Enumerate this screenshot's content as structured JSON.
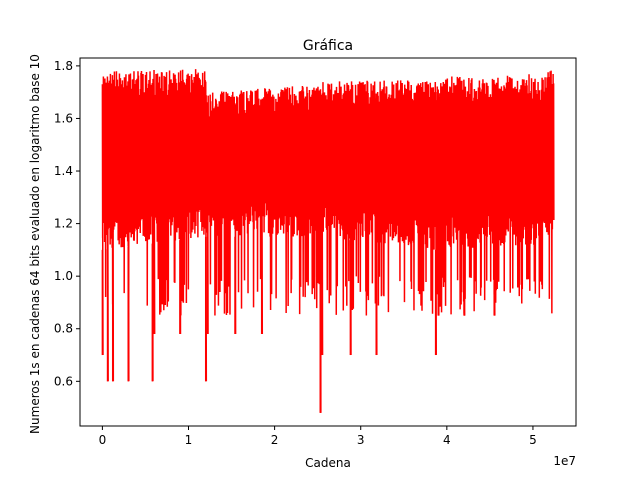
{
  "chart_data": {
    "type": "line",
    "title": "Gráfica",
    "xlabel": "Cadena",
    "ylabel": "Numeros 1s en cadenas 64 bits evaluado en logaritmo base 10",
    "x_offset_label": "1e7",
    "x_tick_labels": [
      "0",
      "1",
      "2",
      "3",
      "4",
      "5"
    ],
    "x_ticks": [
      0,
      10000000,
      20000000,
      30000000,
      40000000,
      50000000
    ],
    "y_tick_labels": [
      "0.6",
      "0.8",
      "1.0",
      "1.2",
      "1.4",
      "1.6",
      "1.8"
    ],
    "y_ticks": [
      0.6,
      0.8,
      1.0,
      1.2,
      1.4,
      1.6,
      1.8
    ],
    "xlim": [
      -2600000,
      55000000
    ],
    "ylim": [
      0.43,
      1.83
    ],
    "grid": false,
    "color": "#ff0000",
    "series": [
      {
        "x_range": [
          0,
          52400000
        ],
        "band_upper": [
          1.78,
          1.79,
          1.7,
          1.73,
          1.74,
          1.75,
          1.76,
          1.77,
          1.78,
          1.79
        ],
        "band_lower": [
          1.1,
          1.15,
          1.15,
          1.15,
          1.15,
          1.1,
          1.1,
          1.12,
          1.15,
          1.2
        ],
        "band_segments_x": [
          0,
          12100000,
          12100001,
          25300000,
          25300001,
          38700000,
          38700001,
          51000000,
          52000000,
          52400000
        ],
        "min_spikes": [
          {
            "x": 0,
            "y": 0.7
          },
          {
            "x": 600000,
            "y": 0.6
          },
          {
            "x": 1200000,
            "y": 0.6
          },
          {
            "x": 3000000,
            "y": 0.6
          },
          {
            "x": 5800000,
            "y": 0.6
          },
          {
            "x": 6000000,
            "y": 0.78
          },
          {
            "x": 9000000,
            "y": 0.78
          },
          {
            "x": 12000000,
            "y": 0.6
          },
          {
            "x": 12200000,
            "y": 0.78
          },
          {
            "x": 15400000,
            "y": 0.78
          },
          {
            "x": 18500000,
            "y": 0.78
          },
          {
            "x": 25300000,
            "y": 0.48
          },
          {
            "x": 25500000,
            "y": 0.7
          },
          {
            "x": 28800000,
            "y": 0.7
          },
          {
            "x": 31800000,
            "y": 0.7
          },
          {
            "x": 38700000,
            "y": 0.7
          },
          {
            "x": 39000000,
            "y": 0.85
          },
          {
            "x": 42000000,
            "y": 0.85
          },
          {
            "x": 45500000,
            "y": 0.85
          }
        ]
      }
    ]
  }
}
